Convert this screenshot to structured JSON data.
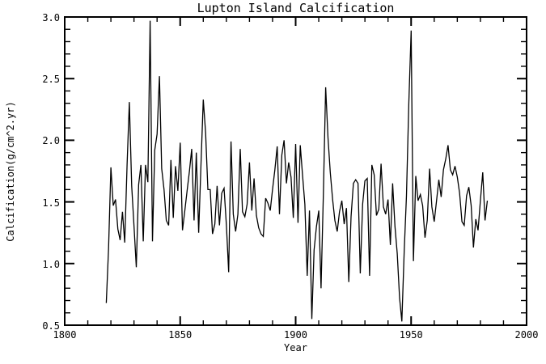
{
  "page": {
    "background": "#ffffff",
    "foreground": "#000000"
  },
  "chart_data": {
    "type": "line",
    "title": "Lupton Island Calcification",
    "xlabel": "Year",
    "ylabel": "Calcification(g/cm^2.yr)",
    "xlim": [
      1800,
      2000
    ],
    "ylim": [
      0.5,
      3.0
    ],
    "xticks_major": [
      1800,
      1850,
      1900,
      1950,
      2000
    ],
    "xtick_labels": [
      "1800",
      "1850",
      "1900",
      "1950",
      "2000"
    ],
    "x_minor_step": 10,
    "yticks_major": [
      0.5,
      1.0,
      1.5,
      2.0,
      2.5,
      3.0
    ],
    "ytick_labels": [
      "0.5",
      "1.0",
      "1.5",
      "2.0",
      "2.5",
      "3.0"
    ],
    "y_minor_step": 0.1,
    "grid": false,
    "legend": null,
    "line_color": "#000000",
    "axis_color": "#000000",
    "series": [
      {
        "name": "Calcification",
        "x": [
          1818,
          1819,
          1820,
          1821,
          1822,
          1823,
          1824,
          1825,
          1826,
          1827,
          1828,
          1829,
          1830,
          1831,
          1832,
          1833,
          1834,
          1835,
          1836,
          1837,
          1838,
          1839,
          1840,
          1841,
          1842,
          1843,
          1844,
          1845,
          1846,
          1847,
          1848,
          1849,
          1850,
          1851,
          1852,
          1853,
          1854,
          1855,
          1856,
          1857,
          1858,
          1859,
          1860,
          1861,
          1862,
          1863,
          1864,
          1865,
          1866,
          1867,
          1868,
          1869,
          1870,
          1871,
          1872,
          1873,
          1874,
          1875,
          1876,
          1877,
          1878,
          1879,
          1880,
          1881,
          1882,
          1883,
          1884,
          1885,
          1886,
          1887,
          1888,
          1889,
          1890,
          1891,
          1892,
          1893,
          1894,
          1895,
          1896,
          1897,
          1898,
          1899,
          1900,
          1901,
          1902,
          1903,
          1904,
          1905,
          1906,
          1907,
          1908,
          1909,
          1910,
          1911,
          1912,
          1913,
          1914,
          1915,
          1916,
          1917,
          1918,
          1919,
          1920,
          1921,
          1922,
          1923,
          1924,
          1925,
          1926,
          1927,
          1928,
          1929,
          1930,
          1931,
          1932,
          1933,
          1934,
          1935,
          1936,
          1937,
          1938,
          1939,
          1940,
          1941,
          1942,
          1943,
          1944,
          1945,
          1946,
          1947,
          1948,
          1949,
          1950,
          1951,
          1952,
          1953,
          1954,
          1955,
          1956,
          1957,
          1958,
          1959,
          1960,
          1961,
          1962,
          1963,
          1964,
          1965,
          1966,
          1967,
          1968,
          1969,
          1970,
          1971,
          1972,
          1973,
          1974,
          1975,
          1976,
          1977,
          1978,
          1979,
          1980,
          1981,
          1982,
          1983
        ],
        "y": [
          0.68,
          1.12,
          1.78,
          1.47,
          1.52,
          1.28,
          1.19,
          1.42,
          1.17,
          1.8,
          2.31,
          1.63,
          1.3,
          0.97,
          1.64,
          1.8,
          1.18,
          1.8,
          1.66,
          2.97,
          1.18,
          1.92,
          2.05,
          2.52,
          1.77,
          1.6,
          1.35,
          1.31,
          1.84,
          1.37,
          1.79,
          1.59,
          1.98,
          1.27,
          1.43,
          1.59,
          1.75,
          1.93,
          1.35,
          1.9,
          1.25,
          1.79,
          2.33,
          2.06,
          1.6,
          1.6,
          1.24,
          1.32,
          1.63,
          1.31,
          1.57,
          1.61,
          1.31,
          0.93,
          1.99,
          1.4,
          1.26,
          1.4,
          1.93,
          1.42,
          1.38,
          1.48,
          1.82,
          1.43,
          1.69,
          1.39,
          1.29,
          1.24,
          1.22,
          1.53,
          1.49,
          1.43,
          1.6,
          1.76,
          1.95,
          1.4,
          1.88,
          2.0,
          1.65,
          1.82,
          1.7,
          1.37,
          1.97,
          1.33,
          1.96,
          1.71,
          1.48,
          0.9,
          1.43,
          0.55,
          1.11,
          1.3,
          1.43,
          0.8,
          1.57,
          2.43,
          2.02,
          1.74,
          1.52,
          1.35,
          1.26,
          1.42,
          1.51,
          1.32,
          1.45,
          0.85,
          1.38,
          1.65,
          1.68,
          1.65,
          0.92,
          1.48,
          1.67,
          1.69,
          0.9,
          1.8,
          1.72,
          1.39,
          1.44,
          1.81,
          1.46,
          1.4,
          1.52,
          1.15,
          1.65,
          1.3,
          1.08,
          0.72,
          0.53,
          1.1,
          1.55,
          2.3,
          2.89,
          1.02,
          1.71,
          1.51,
          1.56,
          1.47,
          1.21,
          1.35,
          1.77,
          1.46,
          1.34,
          1.51,
          1.68,
          1.54,
          1.76,
          1.85,
          1.96,
          1.76,
          1.72,
          1.79,
          1.7,
          1.57,
          1.34,
          1.31,
          1.55,
          1.62,
          1.47,
          1.13,
          1.36,
          1.27,
          1.51,
          1.74,
          1.35,
          1.51
        ]
      }
    ]
  }
}
